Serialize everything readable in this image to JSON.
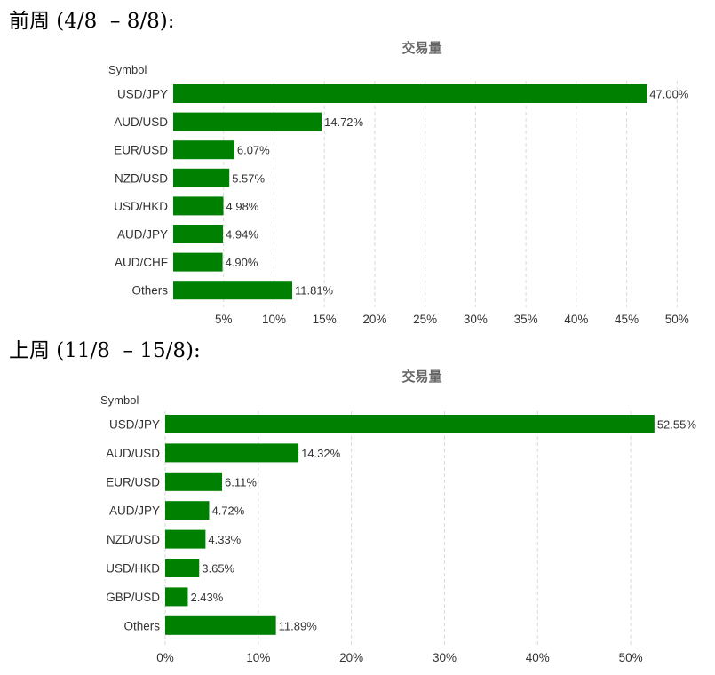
{
  "sections": [
    {
      "heading": "前周 (4/8  – 8/8):"
    },
    {
      "heading": "上周 (11/8  – 15/8):"
    }
  ],
  "chart_data": [
    {
      "type": "bar",
      "orientation": "horizontal",
      "title": "交易量",
      "ylabel": "Symbol",
      "categories": [
        "USD/JPY",
        "AUD/USD",
        "EUR/USD",
        "NZD/USD",
        "USD/HKD",
        "AUD/JPY",
        "AUD/CHF",
        "Others"
      ],
      "values": [
        47.0,
        14.72,
        6.07,
        5.57,
        4.98,
        4.94,
        4.9,
        11.81
      ],
      "value_labels": [
        "47.00%",
        "14.72%",
        "6.07%",
        "5.57%",
        "4.98%",
        "4.94%",
        "4.90%",
        "11.81%"
      ],
      "xlim": [
        0,
        52
      ],
      "xticks": [
        5,
        10,
        15,
        20,
        25,
        30,
        35,
        40,
        45,
        50
      ],
      "xtick_labels": [
        "5%",
        "10%",
        "15%",
        "20%",
        "25%",
        "30%",
        "35%",
        "40%",
        "45%",
        "50%"
      ],
      "grid": true,
      "bar_color": "#008000"
    },
    {
      "type": "bar",
      "orientation": "horizontal",
      "title": "交易量",
      "ylabel": "Symbol",
      "categories": [
        "USD/JPY",
        "AUD/USD",
        "EUR/USD",
        "AUD/JPY",
        "NZD/USD",
        "USD/HKD",
        "GBP/USD",
        "Others"
      ],
      "values": [
        52.55,
        14.32,
        6.11,
        4.72,
        4.33,
        3.65,
        2.43,
        11.89
      ],
      "value_labels": [
        "52.55%",
        "14.32%",
        "6.11%",
        "4.72%",
        "4.33%",
        "3.65%",
        "2.43%",
        "11.89%"
      ],
      "xlim": [
        0,
        56
      ],
      "xticks": [
        0,
        10,
        20,
        30,
        40,
        50
      ],
      "xtick_labels": [
        "0%",
        "10%",
        "20%",
        "30%",
        "40%",
        "50%"
      ],
      "grid": true,
      "bar_color": "#008000"
    }
  ]
}
